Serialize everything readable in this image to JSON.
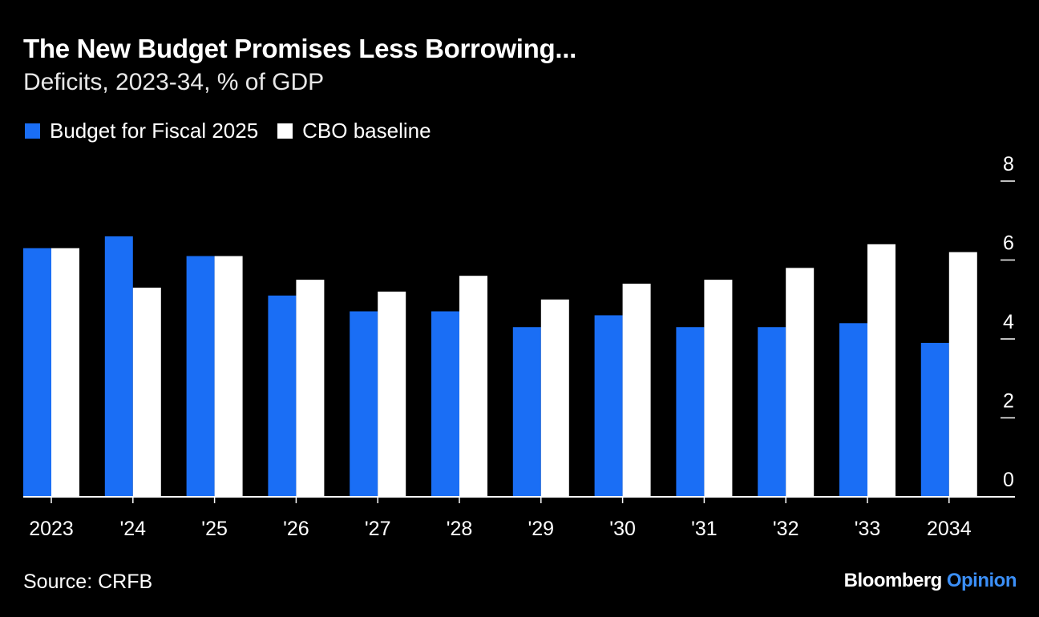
{
  "header": {
    "title": "The New Budget Promises Less Borrowing...",
    "subtitle": "Deficits, 2023-34, % of GDP"
  },
  "legend": [
    {
      "label": "Budget for Fiscal 2025",
      "color": "#1a6ef5"
    },
    {
      "label": "CBO baseline",
      "color": "#ffffff"
    }
  ],
  "footer": {
    "source": "Source: CRFB",
    "brand_primary": "Bloomberg",
    "brand_secondary": "Opinion",
    "brand_secondary_color": "#3b8ff7"
  },
  "chart_data": {
    "type": "bar",
    "categories": [
      "2023",
      "'24",
      "'25",
      "'26",
      "'27",
      "'28",
      "'29",
      "'30",
      "'31",
      "'32",
      "'33",
      "2034"
    ],
    "series": [
      {
        "name": "Budget for Fiscal 2025",
        "color": "#1a6ef5",
        "values": [
          6.3,
          6.6,
          6.1,
          5.1,
          4.7,
          4.7,
          4.3,
          4.6,
          4.3,
          4.3,
          4.4,
          3.9
        ]
      },
      {
        "name": "CBO baseline",
        "color": "#ffffff",
        "values": [
          6.3,
          5.3,
          6.1,
          5.5,
          5.2,
          5.6,
          5.0,
          5.4,
          5.5,
          5.8,
          6.4,
          6.2
        ]
      }
    ],
    "yticks": [
      0,
      2,
      4,
      6,
      8
    ],
    "ylim": [
      0,
      8
    ],
    "xlabel": "",
    "ylabel": "",
    "grid": false,
    "axis_side": "right",
    "legend_position": "top-left"
  }
}
